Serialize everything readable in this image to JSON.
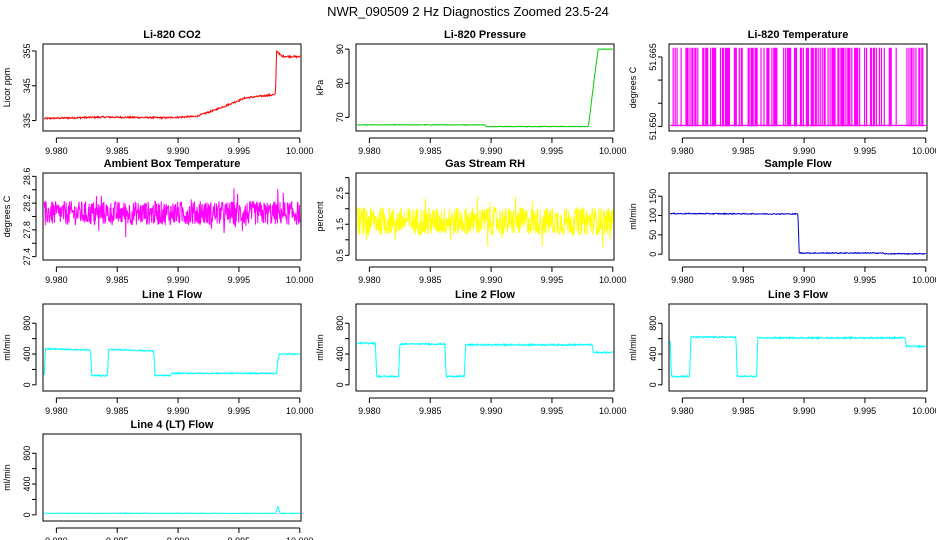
{
  "main_title": "NWR_090509  2 Hz Diagnostics Zoomed 23.5-24",
  "x_ticks": [
    "9.980",
    "9.985",
    "9.990",
    "9.995",
    "10.000"
  ],
  "x_tick_values": [
    9.98,
    9.985,
    9.99,
    9.995,
    10.0
  ],
  "xlim": [
    9.9789,
    10.0001
  ],
  "chart_data": [
    {
      "type": "line",
      "title": "Li-820 CO2",
      "ylabel": "Licor ppm",
      "ylim": [
        332,
        357
      ],
      "yticks": [
        335,
        345,
        355
      ],
      "ytick_labels": [
        "335",
        "345",
        "355"
      ],
      "color": "#ff0000",
      "series": [
        {
          "x": [
            9.979,
            9.984,
            9.989,
            9.9915,
            9.993,
            9.9955,
            9.998,
            9.9981,
            9.9985,
            10.0
          ],
          "y": [
            335.6,
            336.0,
            335.8,
            336.2,
            338.0,
            341.5,
            342.5,
            355.0,
            353.5,
            353.3
          ]
        }
      ]
    },
    {
      "type": "line",
      "title": "Li-820 Pressure",
      "ylabel": "kPa",
      "ylim": [
        66,
        91.5
      ],
      "yticks": [
        70,
        80,
        90
      ],
      "ytick_labels": [
        "70",
        "80",
        "90"
      ],
      "color": "#00cc00",
      "series": [
        {
          "x": [
            9.979,
            9.9895,
            9.9896,
            9.998,
            9.9985,
            9.9988,
            10.0
          ],
          "y": [
            67.8,
            67.8,
            67.3,
            67.3,
            82.0,
            90.0,
            90.0
          ]
        }
      ]
    },
    {
      "type": "line",
      "title": "Li-820 Temperature",
      "ylabel": "degrees C",
      "ylim": [
        51.649,
        51.6678
      ],
      "yticks": [
        51.65,
        51.655,
        51.66,
        51.665
      ],
      "ytick_labels": [
        "51.650",
        "",
        "",
        "51.665"
      ],
      "color": "#ff00ff",
      "series": [
        {
          "x": [
            9.979,
            10.0
          ],
          "y": [
            51.65,
            51.667
          ]
        }
      ]
    },
    {
      "type": "line",
      "title": "Ambient Box Temperature",
      "ylabel": "degrees C",
      "ylim": [
        27.35,
        28.65
      ],
      "yticks": [
        27.4,
        27.6,
        27.8,
        28.0,
        28.2,
        28.4,
        28.6
      ],
      "ytick_labels": [
        "27.4",
        "",
        "27.8",
        "",
        "28.2",
        "",
        "28.6"
      ],
      "color": "#ff00ff",
      "series": [
        {
          "x": [
            9.979,
            10.0
          ],
          "y": [
            28.05,
            28.05
          ]
        }
      ]
    },
    {
      "type": "line",
      "title": "Gas Stream RH",
      "ylabel": "percent",
      "ylim": [
        0.35,
        3.15
      ],
      "yticks": [
        0.5,
        1.0,
        1.5,
        2.0,
        2.5,
        3.0
      ],
      "ytick_labels": [
        "0.5",
        "",
        "1.5",
        "",
        "2.5",
        ""
      ],
      "color": "#ffff00",
      "series": [
        {
          "x": [
            9.979,
            10.0
          ],
          "y": [
            1.6,
            1.6
          ]
        }
      ]
    },
    {
      "type": "line",
      "title": "Sample Flow",
      "ylabel": "ml/min",
      "ylim": [
        -15,
        210
      ],
      "yticks": [
        0,
        50,
        100,
        150
      ],
      "ytick_labels": [
        "0",
        "50",
        "100",
        "150"
      ],
      "color": "#0000cc",
      "series": [
        {
          "x": [
            9.979,
            9.9895,
            9.9896,
            9.9965,
            9.9966,
            10.0
          ],
          "y": [
            105,
            104,
            3,
            3,
            1,
            1
          ]
        }
      ]
    },
    {
      "type": "line",
      "title": "Line 1 Flow",
      "ylabel": "ml/min",
      "ylim": [
        -80,
        1050
      ],
      "yticks": [
        0,
        200,
        400,
        600,
        800
      ],
      "ytick_labels": [
        "0",
        "",
        "400",
        "",
        "800"
      ],
      "color": "#00ffff",
      "series": [
        {
          "x": [
            9.979,
            9.9791,
            9.9828,
            9.9829,
            9.9842,
            9.9843,
            9.988,
            9.9881,
            9.9894,
            9.9895,
            9.9981,
            9.9982,
            9.9983,
            10.0
          ],
          "y": [
            120,
            470,
            450,
            120,
            120,
            460,
            440,
            120,
            120,
            150,
            150,
            300,
            400,
            400
          ]
        }
      ]
    },
    {
      "type": "line",
      "title": "Line 2 Flow",
      "ylabel": "ml/min",
      "ylim": [
        -80,
        1050
      ],
      "yticks": [
        0,
        200,
        400,
        600,
        800
      ],
      "ytick_labels": [
        "0",
        "",
        "400",
        "",
        "800"
      ],
      "color": "#00ffff",
      "series": [
        {
          "x": [
            9.979,
            9.9805,
            9.9806,
            9.9824,
            9.9825,
            9.9862,
            9.9863,
            9.9878,
            9.9879,
            9.9983,
            9.9984,
            10.0
          ],
          "y": [
            540,
            540,
            110,
            110,
            530,
            530,
            110,
            110,
            520,
            520,
            420,
            420
          ]
        }
      ]
    },
    {
      "type": "line",
      "title": "Line 3 Flow",
      "ylabel": "ml/min",
      "ylim": [
        -80,
        1050
      ],
      "yticks": [
        0,
        200,
        400,
        600,
        800
      ],
      "ytick_labels": [
        "0",
        "",
        "400",
        "",
        "800"
      ],
      "color": "#00ffff",
      "series": [
        {
          "x": [
            9.979,
            9.9791,
            9.9806,
            9.9807,
            9.9844,
            9.9845,
            9.9861,
            9.9862,
            9.9983,
            9.9984,
            10.0
          ],
          "y": [
            580,
            110,
            110,
            620,
            620,
            110,
            110,
            610,
            610,
            500,
            500
          ]
        }
      ]
    },
    {
      "type": "line",
      "title": "Line 4 (LT) Flow",
      "ylabel": "ml/min",
      "ylim": [
        -80,
        1050
      ],
      "yticks": [
        0,
        200,
        400,
        600,
        800
      ],
      "ytick_labels": [
        "0",
        "",
        "400",
        "",
        "800"
      ],
      "color": "#00ffff",
      "series": [
        {
          "x": [
            9.979,
            9.998,
            9.9982,
            9.9984,
            10.0
          ],
          "y": [
            20,
            20,
            110,
            20,
            20
          ]
        }
      ]
    }
  ]
}
